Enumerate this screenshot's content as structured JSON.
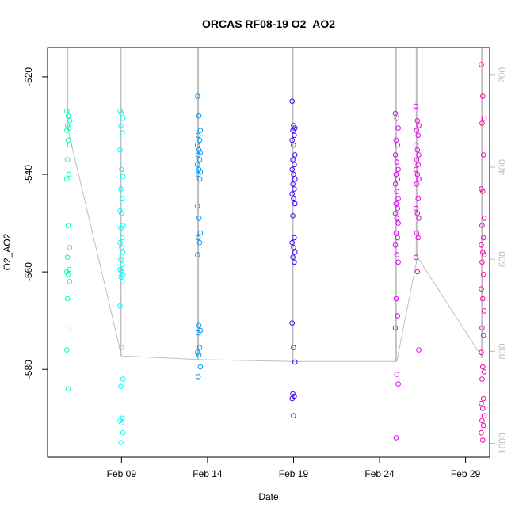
{
  "chart_data": {
    "type": "scatter",
    "title": "ORCAS RF08-19 O2_AO2",
    "xlabel": "Date",
    "ylabel": "O2_AO2",
    "x_ticks": [
      "Feb 09",
      "Feb 14",
      "Feb 19",
      "Feb 24",
      "Feb 29"
    ],
    "x_tick_days": [
      9,
      14,
      19,
      24,
      29
    ],
    "xlim_days": [
      4.7,
      30.4
    ],
    "y_ticks": [
      -520,
      -540,
      -560,
      -580
    ],
    "ylim": [
      -598,
      -514
    ],
    "y2_ticks": [
      200,
      400,
      600,
      800,
      1000
    ],
    "y2lim": [
      1030,
      140
    ],
    "y2_color": "#bebebe",
    "secondary_line_color": "#bebebe",
    "grid": false,
    "legend": "none",
    "flights": [
      {
        "day": 5.9,
        "color": "#00ffbb",
        "values": [
          -527,
          -528,
          -529,
          -530,
          -530.5,
          -531,
          -533,
          -534,
          -537,
          -540,
          -541,
          -550.5,
          -555,
          -557,
          -559.5,
          -560,
          -560.5,
          -562,
          -565.5,
          -571.5,
          -576,
          -584
        ]
      },
      {
        "day": 9.0,
        "color": "#00ffff",
        "values": [
          -527,
          -527.5,
          -528.5,
          -530,
          -531.5,
          -535,
          -539,
          -540.5,
          -543,
          -545,
          -547.5,
          -548,
          -550.5,
          -551,
          -553,
          -554,
          -555,
          -556,
          -557.5,
          -558.5,
          -559.5,
          -560,
          -560.5,
          -561,
          -562,
          -567,
          -575.5,
          -582,
          -583.5,
          -590,
          -590.5,
          -591,
          -593,
          -595
        ]
      },
      {
        "day": 13.5,
        "color": "#0099ff",
        "values": [
          -524,
          -528,
          -531,
          -532,
          -533,
          -534,
          -535,
          -535.5,
          -536,
          -537,
          -538,
          -539,
          -539.5,
          -540,
          -541,
          -546.5,
          -549,
          -552,
          -553,
          -554,
          -556.5,
          -571,
          -572,
          -572.5,
          -575.5,
          -576.5,
          -577,
          -579.5,
          -581.5
        ]
      },
      {
        "day": 19.0,
        "color": "#4400ff",
        "values": [
          -525,
          -530,
          -530.5,
          -531,
          -532,
          -533,
          -534,
          -536,
          -537,
          -538,
          -539,
          -540,
          -541,
          -542,
          -543,
          -544,
          -545,
          -546,
          -548.5,
          -553,
          -554,
          -555,
          -556,
          -557,
          -558,
          -570.5,
          -575.5,
          -578.5,
          -585,
          -585.5,
          -586,
          -589.5
        ]
      },
      {
        "day": 25.0,
        "color": "#dd00ff",
        "values": [
          -527.5,
          -528.5,
          -530.5,
          -533,
          -534,
          -536,
          -537.5,
          -539,
          -540,
          -541,
          -542,
          -543.5,
          -545,
          -546,
          -547,
          -548,
          -549,
          -550,
          -552,
          -553,
          -554.5,
          -556.5,
          -558,
          -565.5,
          -569,
          -571.5,
          -581,
          -583,
          -594
        ]
      },
      {
        "day": 26.2,
        "color": "#ee00ee",
        "values": [
          -526,
          -529,
          -530,
          -531,
          -532,
          -534,
          -535,
          -536,
          -537,
          -538,
          -539,
          -540,
          -541,
          -542,
          -545,
          -547,
          -548,
          -549,
          -552,
          -553,
          -557,
          -560,
          -576
        ]
      },
      {
        "day": 30.0,
        "color": "#ff00aa",
        "values": [
          -517.5,
          -524,
          -528.5,
          -529.5,
          -536,
          -543,
          -543.5,
          -549,
          -550.5,
          -553,
          -554.5,
          -556,
          -556.5,
          -558,
          -560.5,
          -563.5,
          -565.5,
          -568,
          -571.5,
          -573,
          -576.5,
          -579.5,
          -580.5,
          -582,
          -586,
          -587,
          -588,
          -589.5,
          -590.5,
          -591.5,
          -593,
          -594.5
        ]
      }
    ],
    "secondary_series": {
      "name": "",
      "x_days": [
        5.9,
        9.0,
        13.5,
        19.0,
        25.0,
        26.2,
        30.0
      ],
      "values": [
        320,
        810,
        818,
        822,
        822,
        595,
        815
      ]
    }
  }
}
